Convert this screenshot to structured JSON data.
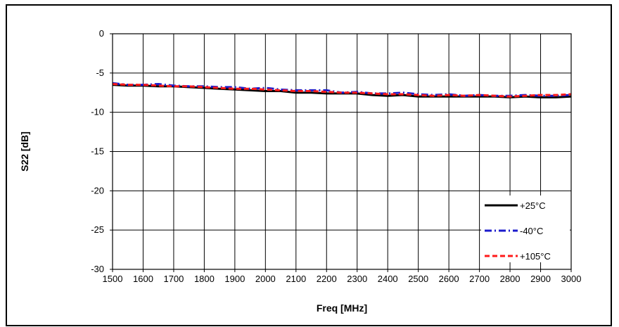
{
  "chart_data": {
    "type": "line",
    "title": "",
    "xlabel": "Freq [MHz]",
    "ylabel": "S22 [dB]",
    "xlim": [
      1500,
      3000
    ],
    "ylim": [
      -30,
      0
    ],
    "x_ticks": [
      "1500",
      "1600",
      "1700",
      "1800",
      "1900",
      "2000",
      "2100",
      "2200",
      "2300",
      "2400",
      "2500",
      "2600",
      "2700",
      "2800",
      "2900",
      "3000"
    ],
    "y_ticks": [
      "0",
      "-5",
      "-10",
      "-15",
      "-20",
      "-25",
      "-30"
    ],
    "grid": true,
    "legend_position": "bottom-right",
    "x": [
      1500,
      1550,
      1600,
      1650,
      1700,
      1750,
      1800,
      1850,
      1900,
      1950,
      2000,
      2050,
      2100,
      2150,
      2200,
      2250,
      2300,
      2350,
      2400,
      2450,
      2500,
      2550,
      2600,
      2650,
      2700,
      2750,
      2800,
      2850,
      2900,
      2950,
      3000
    ],
    "series": [
      {
        "name": "+25°C",
        "color": "#000000",
        "dash": "solid",
        "values": [
          -6.5,
          -6.6,
          -6.6,
          -6.7,
          -6.7,
          -6.8,
          -6.9,
          -7.0,
          -7.1,
          -7.2,
          -7.3,
          -7.3,
          -7.5,
          -7.5,
          -7.6,
          -7.6,
          -7.6,
          -7.8,
          -7.9,
          -7.8,
          -8.0,
          -8.0,
          -8.0,
          -8.0,
          -8.0,
          -8.0,
          -8.1,
          -8.0,
          -8.1,
          -8.1,
          -8.0
        ]
      },
      {
        "name": "-40°C",
        "color": "#1a1acc",
        "dash": "dashdot",
        "values": [
          -6.3,
          -6.5,
          -6.5,
          -6.4,
          -6.6,
          -6.7,
          -6.7,
          -6.8,
          -6.8,
          -7.0,
          -6.9,
          -7.1,
          -7.2,
          -7.2,
          -7.2,
          -7.5,
          -7.4,
          -7.6,
          -7.6,
          -7.5,
          -7.7,
          -7.8,
          -7.7,
          -7.9,
          -7.8,
          -7.9,
          -7.9,
          -7.8,
          -7.9,
          -7.9,
          -7.8
        ]
      },
      {
        "name": "+105°C",
        "color": "#ff1a1a",
        "dash": "dashed",
        "values": [
          -6.4,
          -6.5,
          -6.5,
          -6.6,
          -6.7,
          -6.7,
          -6.8,
          -6.9,
          -7.0,
          -7.0,
          -7.1,
          -7.2,
          -7.3,
          -7.3,
          -7.4,
          -7.5,
          -7.5,
          -7.6,
          -7.7,
          -7.7,
          -7.8,
          -7.9,
          -7.8,
          -7.9,
          -7.8,
          -7.9,
          -8.0,
          -7.9,
          -7.8,
          -7.8,
          -7.7
        ]
      }
    ]
  }
}
